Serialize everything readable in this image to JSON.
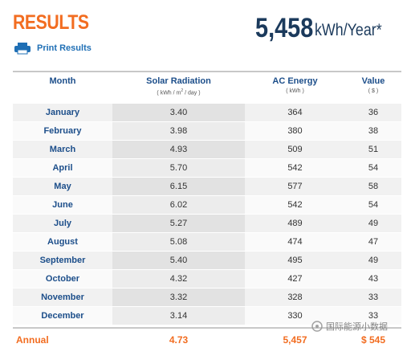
{
  "header": {
    "title": "RESULTS",
    "print_link": "Print Results",
    "annual_total": "5,458",
    "annual_unit": "kWh/Year*"
  },
  "table": {
    "columns": [
      {
        "name": "Month"
      },
      {
        "name": "Solar Radiation",
        "unit_parts": [
          "( kWh / m",
          "2",
          " / day )"
        ]
      },
      {
        "name": "AC Energy",
        "unit": "( kWh )"
      },
      {
        "name": "Value",
        "unit": "( $ )"
      }
    ],
    "rows": [
      [
        "January",
        "3.40",
        "364",
        "36"
      ],
      [
        "February",
        "3.98",
        "380",
        "38"
      ],
      [
        "March",
        "4.93",
        "509",
        "51"
      ],
      [
        "April",
        "5.70",
        "542",
        "54"
      ],
      [
        "May",
        "6.15",
        "577",
        "58"
      ],
      [
        "June",
        "6.02",
        "542",
        "54"
      ],
      [
        "July",
        "5.27",
        "489",
        "49"
      ],
      [
        "August",
        "5.08",
        "474",
        "47"
      ],
      [
        "September",
        "5.40",
        "495",
        "49"
      ],
      [
        "October",
        "4.32",
        "427",
        "43"
      ],
      [
        "November",
        "3.32",
        "328",
        "33"
      ],
      [
        "December",
        "3.14",
        "330",
        "33"
      ]
    ],
    "footer": [
      "Annual",
      "4.73",
      "5,457",
      "$ 545"
    ]
  },
  "watermark": "国际能源小数据"
}
